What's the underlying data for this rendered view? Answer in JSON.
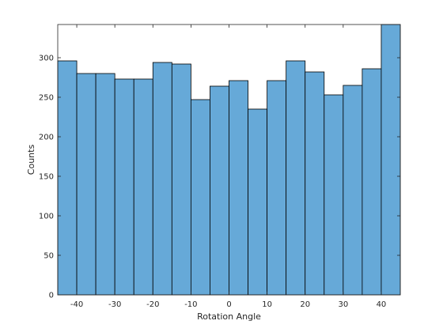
{
  "chart_data": {
    "type": "bar",
    "title": "",
    "xlabel": "Rotation Angle",
    "ylabel": "Counts",
    "bin_edges": [
      -45,
      -40,
      -35,
      -30,
      -25,
      -20,
      -15,
      -10,
      -5,
      0,
      5,
      10,
      15,
      20,
      25,
      30,
      35,
      40,
      45
    ],
    "values": [
      296,
      280,
      280,
      273,
      273,
      294,
      292,
      247,
      264,
      271,
      235,
      271,
      296,
      282,
      253,
      265,
      286,
      342
    ],
    "xlim": [
      -45,
      45
    ],
    "ylim": [
      0,
      342
    ],
    "xticks": [
      -40,
      -30,
      -20,
      -10,
      0,
      10,
      20,
      30,
      40
    ],
    "xtick_labels": [
      "-40",
      "-30",
      "-20",
      "-10",
      "0",
      "10",
      "20",
      "30",
      "40"
    ],
    "yticks": [
      0,
      50,
      100,
      150,
      200,
      250,
      300
    ],
    "ytick_labels": [
      "0",
      "50",
      "100",
      "150",
      "200",
      "250",
      "300"
    ],
    "grid": false,
    "bar_color": "#66a9d8",
    "edge_color": "#000000"
  }
}
